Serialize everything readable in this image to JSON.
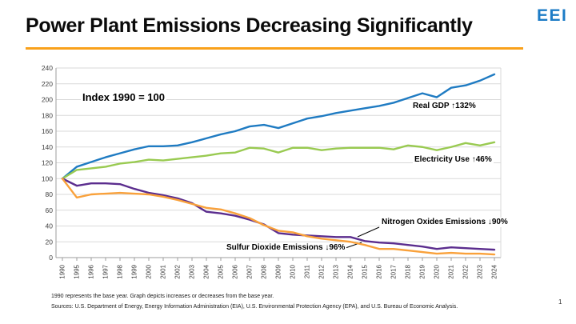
{
  "slide": {
    "title": "Power Plant Emissions Decreasing Significantly",
    "logo_text": "EEI",
    "logo_color": "#1D7CC6",
    "accent_color": "#F9A11B",
    "page_number": "1",
    "footnote_base_year": "1990 represents the base year. Graph depicts increases or decreases from the base year.",
    "footnote_sources": "Sources: U.S. Department of Energy, Energy Information Administration (EIA), U.S. Environmental Protection Agency (EPA), and U.S. Bureau of Economic Analysis."
  },
  "chart_data": {
    "type": "line",
    "annotation": "Index 1990 = 100",
    "x": [
      "1990",
      "1995",
      "1996",
      "1997",
      "1998",
      "1999",
      "2000",
      "2001",
      "2002",
      "2003",
      "2004",
      "2005",
      "2006",
      "2007",
      "2008",
      "2009",
      "2010",
      "2011",
      "2012",
      "2013",
      "2014",
      "2015",
      "2016",
      "2017",
      "2018",
      "2019",
      "2020",
      "2021",
      "2022",
      "2023",
      "2024"
    ],
    "ylim": [
      0,
      240
    ],
    "ytick_interval": 20,
    "grid": true,
    "gridline_color": "#D9D9D9",
    "axis_color": "#9E9E9E",
    "legend_position": "inline-labels",
    "series": [
      {
        "name": "Real GDP",
        "label": "Real GDP ↑132%",
        "color": "#1F7BC2",
        "values": [
          100,
          115,
          121,
          127,
          132,
          137,
          141,
          141,
          142,
          146,
          151,
          156,
          160,
          166,
          168,
          164,
          170,
          176,
          179,
          183,
          186,
          189,
          192,
          196,
          202,
          208,
          203,
          215,
          218,
          224,
          232
        ]
      },
      {
        "name": "Electricity Use",
        "label": "Electricity Use ↑46%",
        "color": "#99CA51",
        "values": [
          100,
          111,
          113,
          115,
          119,
          121,
          124,
          123,
          125,
          127,
          129,
          132,
          133,
          139,
          138,
          133,
          139,
          139,
          136,
          138,
          139,
          139,
          139,
          137,
          142,
          140,
          136,
          140,
          145,
          142,
          146
        ]
      },
      {
        "name": "Nitrogen Oxides Emissions",
        "label": "Nitrogen Oxides Emissions ↓90%",
        "color": "#5B2D8E",
        "values": [
          100,
          91,
          94,
          94,
          93,
          87,
          82,
          79,
          75,
          69,
          58,
          56,
          53,
          48,
          42,
          31,
          29,
          28,
          27,
          26,
          26,
          21,
          19,
          18,
          16,
          14,
          11,
          13,
          12,
          11,
          10
        ]
      },
      {
        "name": "Sulfur Dioxide Emissions",
        "label": "Sulfur Dioxide Emissions ↓96%",
        "color": "#F9A13B",
        "values": [
          100,
          76,
          80,
          81,
          82,
          81,
          80,
          77,
          73,
          68,
          63,
          61,
          56,
          50,
          41,
          34,
          32,
          27,
          24,
          22,
          20,
          16,
          11,
          11,
          9,
          7,
          5,
          6,
          5,
          5,
          4
        ]
      }
    ]
  }
}
